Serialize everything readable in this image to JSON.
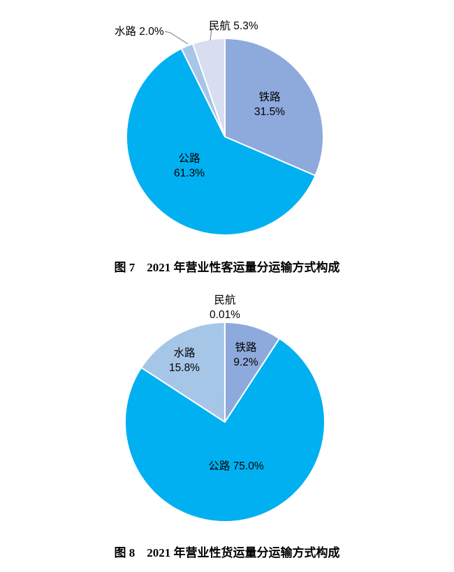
{
  "page": {
    "background": "#ffffff"
  },
  "styles": {
    "slice_border_color": "#ffffff",
    "leader_line_color": "#8C8C8C",
    "label_text_color": "#000000",
    "caption_text_color": "#000000",
    "palette": {
      "railway": "#8EA9DB",
      "highway": "#00B0F0",
      "waterway": "#A6C6E8",
      "civil_aviation": "#D8DEF0"
    }
  },
  "chart_data": [
    {
      "type": "pie",
      "figure_number": "图 7",
      "title": "图 7　2021 年营业性客运量分运输方式构成",
      "start_angle": "12-oclock",
      "direction": "clockwise",
      "unit": "%",
      "categories": [
        "铁路",
        "公路",
        "水路",
        "民航"
      ],
      "categories_en": [
        "railway",
        "highway",
        "waterway",
        "civil-aviation"
      ],
      "values": [
        31.5,
        61.3,
        2.0,
        5.3
      ],
      "colors": [
        "#8EA9DB",
        "#00B0F0",
        "#A6C6E8",
        "#D8DEF0"
      ],
      "labels": [
        {
          "line1": "铁路",
          "line2": "31.5%",
          "placement": "inside"
        },
        {
          "line1": "公路",
          "line2": "61.3%",
          "placement": "inside"
        },
        {
          "line1": "水路 2.0%",
          "placement": "outside-callout"
        },
        {
          "line1": "民航 5.3%",
          "placement": "outside-callout"
        }
      ]
    },
    {
      "type": "pie",
      "figure_number": "图 8",
      "title": "图 8　2021 年营业性货运量分运输方式构成",
      "start_angle": "12-oclock",
      "direction": "clockwise",
      "unit": "%",
      "categories": [
        "铁路",
        "公路",
        "水路",
        "民航"
      ],
      "categories_en": [
        "railway",
        "highway",
        "waterway",
        "civil-aviation"
      ],
      "values": [
        9.2,
        75.0,
        15.8,
        0.01
      ],
      "colors": [
        "#8EA9DB",
        "#00B0F0",
        "#A6C6E8",
        "#D8DEF0"
      ],
      "labels": [
        {
          "line1": "铁路",
          "line2": "9.2%",
          "placement": "inside"
        },
        {
          "line1": "公路 75.0%",
          "placement": "inside"
        },
        {
          "line1": "水路",
          "line2": "15.8%",
          "placement": "inside"
        },
        {
          "line1": "民航",
          "line2": "0.01%",
          "placement": "outside"
        }
      ]
    }
  ]
}
